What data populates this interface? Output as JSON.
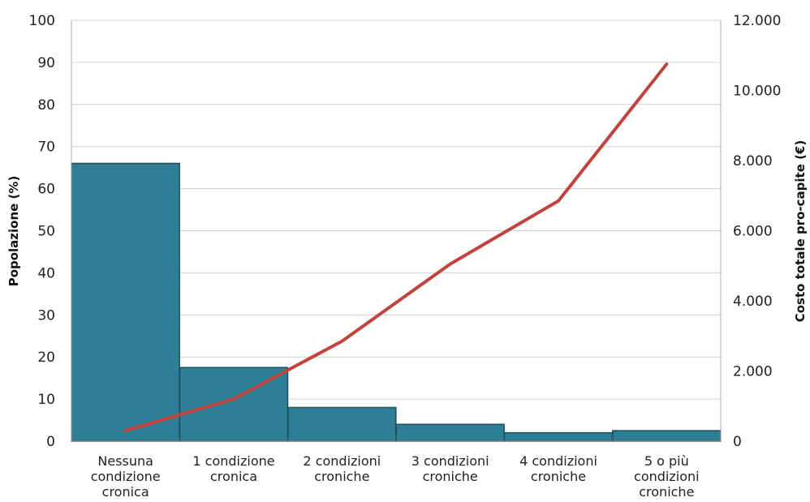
{
  "chart_data": {
    "type": "bar",
    "categories": [
      [
        "Nessuna",
        "condizione",
        "cronica"
      ],
      [
        "1 condizione",
        "cronica"
      ],
      [
        "2 condizioni",
        "croniche"
      ],
      [
        "3 condizioni",
        "croniche"
      ],
      [
        "4 condizioni",
        "croniche"
      ],
      [
        "5 o più",
        "condizioni",
        "croniche"
      ]
    ],
    "title": "",
    "ylabel": "Popolazione (%)",
    "y2label": "Costo totale pro-capite (€)",
    "ylim": [
      0,
      100
    ],
    "y2lim": [
      0,
      12000
    ],
    "yticks": [
      "0",
      "10",
      "20",
      "30",
      "40",
      "50",
      "60",
      "70",
      "80",
      "90",
      "100"
    ],
    "y2ticks": [
      "0",
      "2.000",
      "4.000",
      "6.000",
      "8.000",
      "10.000",
      "12.000"
    ],
    "grid": true,
    "series": [
      {
        "type": "bar",
        "axis": "left",
        "values": [
          66,
          17.5,
          8,
          4,
          2,
          2.5
        ],
        "color": "#2e7f95"
      },
      {
        "type": "line",
        "axis": "right",
        "values": [
          300,
          1200,
          2850,
          5050,
          6850,
          10750
        ],
        "color": "#c0433e"
      }
    ]
  }
}
